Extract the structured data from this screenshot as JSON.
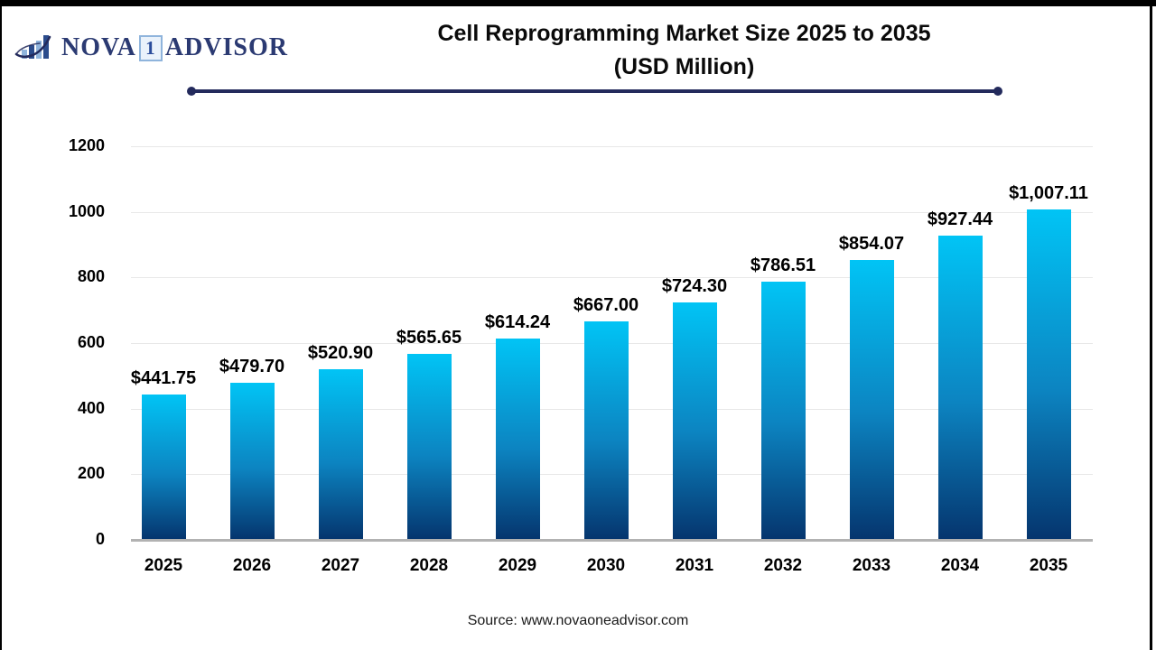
{
  "logo": {
    "name_part1": "NOVA",
    "badge": "1",
    "name_part2": "ADVISOR",
    "icon": "bar-chart-with-swoosh-icon",
    "navy": "#2b3a72",
    "light_blue": "#8fb4dc"
  },
  "header": {
    "title_line1": "Cell Reprogramming Market Size 2025 to 2035",
    "title_line2": "(USD Million)"
  },
  "chart_data": {
    "type": "bar",
    "title": "Cell Reprogramming Market Size 2025 to 2035 (USD Million)",
    "categories": [
      "2025",
      "2026",
      "2027",
      "2028",
      "2029",
      "2030",
      "2031",
      "2032",
      "2033",
      "2034",
      "2035"
    ],
    "values": [
      441.75,
      479.7,
      520.9,
      565.65,
      614.24,
      667.0,
      724.3,
      786.51,
      854.07,
      927.44,
      1007.11
    ],
    "labels": [
      "$441.75",
      "$479.70",
      "$520.90",
      "$565.65",
      "$614.24",
      "$667.00",
      "$724.30",
      "$786.51",
      "$854.07",
      "$927.44",
      "$1,007.11"
    ],
    "xlabel": "",
    "ylabel": "",
    "ylim": [
      0,
      1200
    ],
    "yticks": [
      0,
      200,
      400,
      600,
      800,
      1000,
      1200
    ],
    "grid": true,
    "legend": "none",
    "bar_gradient_top": "#01c4f5",
    "bar_gradient_bottom": "#05356e",
    "gridline_color": "#e8e8e8",
    "axis_line_color": "#b2b2b2"
  },
  "footer": {
    "source": "Source: www.novaoneadvisor.com"
  }
}
